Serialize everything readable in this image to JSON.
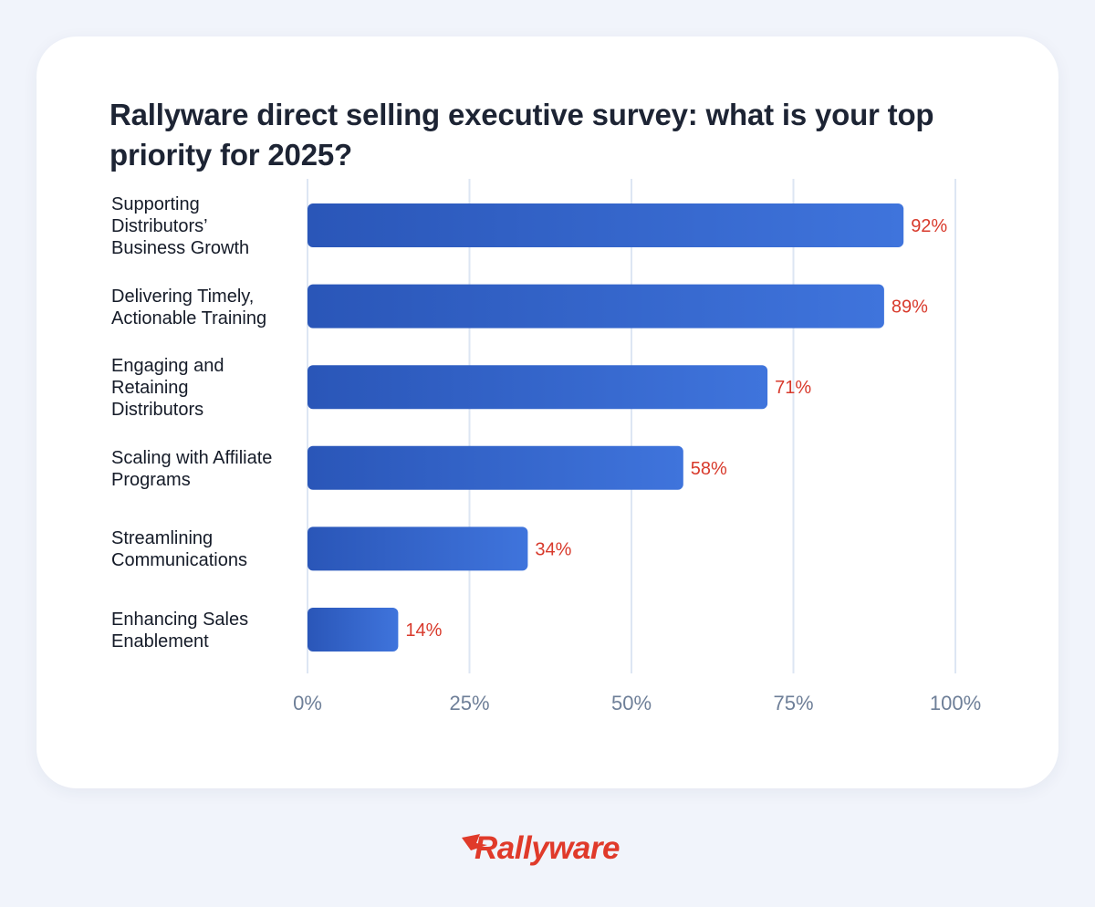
{
  "title": "Rallyware direct selling executive survey: what is your top priority for 2025?",
  "brand": {
    "name": "Rallyware",
    "color": "#e03a2a"
  },
  "colors": {
    "bar_start": "#2a56b8",
    "bar_end": "#3f74dc",
    "value_label": "#d83a2c",
    "grid": "#dde6f3",
    "tick_label": "#6e7f98",
    "background": "#f1f4fb",
    "card": "#ffffff"
  },
  "chart_data": {
    "type": "bar",
    "orientation": "horizontal",
    "title": "Rallyware direct selling executive survey: what is your top priority for 2025?",
    "categories": [
      [
        "Supporting",
        "Distributors’",
        "Business Growth"
      ],
      [
        "Delivering Timely,",
        "Actionable Training"
      ],
      [
        "Engaging and",
        "Retaining",
        "Distributors"
      ],
      [
        "Scaling with Affiliate",
        "Programs"
      ],
      [
        "Streamlining",
        "Communications"
      ],
      [
        "Enhancing Sales",
        "Enablement"
      ]
    ],
    "values": [
      92,
      89,
      71,
      58,
      34,
      14
    ],
    "value_labels": [
      "92%",
      "89%",
      "71%",
      "58%",
      "34%",
      "14%"
    ],
    "xlim": [
      0,
      100
    ],
    "xticks": [
      0,
      25,
      50,
      75,
      100
    ],
    "xtick_labels": [
      "0%",
      "25%",
      "50%",
      "75%",
      "100%"
    ],
    "grid": "vertical",
    "legend": "none"
  }
}
